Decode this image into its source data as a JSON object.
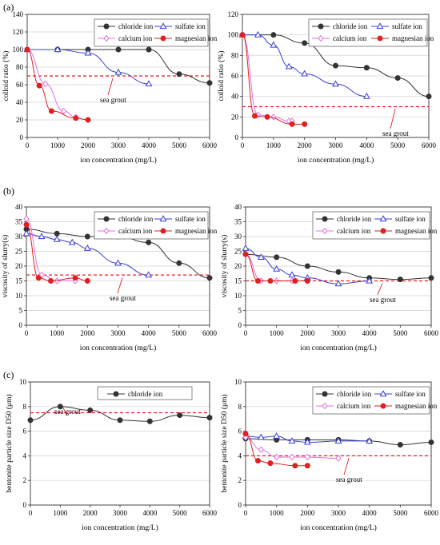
{
  "figure": {
    "panel_labels": [
      "(a)",
      "(b)",
      "(c)"
    ]
  },
  "colors": {
    "chloride": "#333333",
    "sulfate": "#3a3fd6",
    "calcium": "#e070e0",
    "magnesian": "#e02020",
    "sea_grout": "#e02020"
  },
  "chart_data": [
    {
      "id": "a-left",
      "type": "line",
      "panel": "(a)",
      "xlabel": "ion concentration (mg/L)",
      "ylabel": "colloid ratio (%)",
      "xlim": [
        0,
        6000
      ],
      "ylim": [
        0,
        140
      ],
      "xticks": [
        0,
        1000,
        2000,
        3000,
        4000,
        5000,
        6000
      ],
      "yticks": [
        0,
        20,
        40,
        60,
        80,
        100,
        120,
        140
      ],
      "legend_position": "top-right",
      "legend_columns": 2,
      "reference_line": {
        "y": 70,
        "label": "sea grout"
      },
      "series": [
        {
          "name": "chloride ion",
          "key": "chloride",
          "marker": "circle",
          "x": [
            0,
            1000,
            2000,
            3000,
            4000,
            5000,
            6000
          ],
          "y": [
            100,
            100,
            100,
            100,
            100,
            72,
            62
          ]
        },
        {
          "name": "sulfate ion",
          "key": "sulfate",
          "marker": "triangle",
          "x": [
            0,
            1000,
            2000,
            3000,
            4000
          ],
          "y": [
            100,
            100,
            96,
            74,
            61
          ]
        },
        {
          "name": "calcium ion",
          "key": "calcium",
          "marker": "diamond",
          "x": [
            0,
            600,
            1200,
            1600
          ],
          "y": [
            100,
            61,
            30,
            23
          ]
        },
        {
          "name": "magnesian ion",
          "key": "magnesian",
          "marker": "circle",
          "x": [
            0,
            400,
            800,
            1600,
            2000
          ],
          "y": [
            100,
            59,
            30,
            22,
            20
          ]
        }
      ]
    },
    {
      "id": "a-right",
      "type": "line",
      "panel": "(a)",
      "xlabel": "ion concentration (mg/L)",
      "ylabel": "colloid ratio (%)",
      "xlim": [
        0,
        6000
      ],
      "ylim": [
        0,
        120
      ],
      "xticks": [
        0,
        1000,
        2000,
        3000,
        4000,
        5000,
        6000
      ],
      "yticks": [
        0,
        20,
        40,
        60,
        80,
        100,
        120
      ],
      "legend_position": "top-right",
      "legend_columns": 2,
      "reference_line": {
        "y": 30,
        "label": "sea grout"
      },
      "series": [
        {
          "name": "chloride ion",
          "key": "chloride",
          "marker": "circle",
          "x": [
            0,
            1000,
            2000,
            3000,
            4000,
            5000,
            6000
          ],
          "y": [
            100,
            100,
            92,
            70,
            68,
            58,
            40
          ]
        },
        {
          "name": "sulfate ion",
          "key": "sulfate",
          "marker": "triangle",
          "x": [
            0,
            500,
            1000,
            1500,
            2000,
            3000,
            4000
          ],
          "y": [
            100,
            100,
            90,
            69,
            62,
            52,
            40
          ]
        },
        {
          "name": "calcium ion",
          "key": "calcium",
          "marker": "diamond",
          "x": [
            0,
            500,
            1000,
            1500,
            1600
          ],
          "y": [
            100,
            22,
            20,
            16,
            16
          ]
        },
        {
          "name": "magnesian ion",
          "key": "magnesian",
          "marker": "circle",
          "x": [
            0,
            400,
            800,
            1600,
            2000
          ],
          "y": [
            100,
            21,
            20,
            13,
            13
          ]
        }
      ]
    },
    {
      "id": "b-left",
      "type": "line",
      "panel": "(b)",
      "xlabel": "ion concentration (mg/L)",
      "ylabel": "viscosity of slurry(s)",
      "xlim": [
        0,
        6000
      ],
      "ylim": [
        0,
        40
      ],
      "xticks": [
        0,
        1000,
        2000,
        3000,
        4000,
        5000,
        6000
      ],
      "yticks": [
        0,
        5,
        10,
        15,
        20,
        25,
        30,
        35,
        40
      ],
      "legend_position": "top-right",
      "legend_columns": 2,
      "reference_line": {
        "y": 17,
        "label": "sea grout"
      },
      "series": [
        {
          "name": "chloride ion",
          "key": "chloride",
          "marker": "circle",
          "x": [
            0,
            1000,
            2000,
            3000,
            4000,
            5000,
            6000
          ],
          "y": [
            32.5,
            31,
            30,
            30,
            28,
            21,
            16
          ]
        },
        {
          "name": "sulfate ion",
          "key": "sulfate",
          "marker": "triangle",
          "x": [
            0,
            500,
            1000,
            1500,
            2000,
            3000,
            4000
          ],
          "y": [
            31,
            30,
            29,
            28,
            26,
            21,
            17
          ]
        },
        {
          "name": "calcium ion",
          "key": "calcium",
          "marker": "diamond",
          "x": [
            0,
            500,
            1000,
            1600
          ],
          "y": [
            36,
            17,
            15,
            15
          ]
        },
        {
          "name": "magnesian ion",
          "key": "magnesian",
          "marker": "circle",
          "x": [
            0,
            400,
            800,
            1600,
            2000
          ],
          "y": [
            34,
            16,
            15,
            16,
            15
          ]
        }
      ]
    },
    {
      "id": "b-right",
      "type": "line",
      "panel": "(b)",
      "xlabel": "ion concentration (mg/L)",
      "ylabel": "viscosity of slurry(s)",
      "xlim": [
        0,
        6000
      ],
      "ylim": [
        0,
        40
      ],
      "xticks": [
        0,
        1000,
        2000,
        3000,
        4000,
        5000,
        6000
      ],
      "yticks": [
        0,
        5,
        10,
        15,
        20,
        25,
        30,
        35,
        40
      ],
      "legend_position": "top-right",
      "legend_columns": 2,
      "reference_line": {
        "y": 15,
        "label": "sea grout"
      },
      "series": [
        {
          "name": "chloride ion",
          "key": "chloride",
          "marker": "circle",
          "x": [
            0,
            1000,
            2000,
            3000,
            4000,
            5000,
            6000
          ],
          "y": [
            24,
            23,
            20,
            18,
            16,
            15.5,
            16
          ]
        },
        {
          "name": "sulfate ion",
          "key": "sulfate",
          "marker": "triangle",
          "x": [
            0,
            500,
            1000,
            1500,
            2000,
            3000,
            4000
          ],
          "y": [
            26,
            23,
            19,
            17,
            16,
            14,
            15
          ]
        },
        {
          "name": "calcium ion",
          "key": "calcium",
          "marker": "diamond",
          "x": [
            0,
            500,
            1000,
            1500,
            2000
          ],
          "y": [
            24,
            15,
            15,
            15,
            15
          ]
        },
        {
          "name": "magnesian ion",
          "key": "magnesian",
          "marker": "circle",
          "x": [
            0,
            400,
            800,
            1600,
            2000
          ],
          "y": [
            24,
            15,
            15,
            15,
            15
          ]
        }
      ]
    },
    {
      "id": "c-left",
      "type": "line",
      "panel": "(c)",
      "xlabel": "ion concentration (mg/L)",
      "ylabel": "bentonite particle size D50 (μm)",
      "xlim": [
        0,
        6000
      ],
      "ylim": [
        0,
        10
      ],
      "xticks": [
        0,
        1000,
        2000,
        3000,
        4000,
        5000,
        6000
      ],
      "yticks": [
        0,
        2,
        4,
        6,
        8,
        10
      ],
      "legend_position": "top-center",
      "legend_columns": 1,
      "reference_line": {
        "y": 7.5,
        "label": "sea grout"
      },
      "series": [
        {
          "name": "chloride ion",
          "key": "chloride",
          "marker": "circle",
          "x": [
            0,
            1000,
            2000,
            3000,
            4000,
            5000,
            6000
          ],
          "y": [
            6.9,
            8.0,
            7.7,
            6.9,
            6.8,
            7.3,
            7.1
          ]
        }
      ]
    },
    {
      "id": "c-right",
      "type": "line",
      "panel": "(c)",
      "xlabel": "ion concentration (mg/L)",
      "ylabel": "bentonite particle size D50 (μm)",
      "xlim": [
        0,
        6000
      ],
      "ylim": [
        0,
        10
      ],
      "xticks": [
        0,
        1000,
        2000,
        3000,
        4000,
        5000,
        6000
      ],
      "yticks": [
        0,
        2,
        4,
        6,
        8,
        10
      ],
      "legend_position": "top-right",
      "legend_columns": 2,
      "reference_line": {
        "y": 4,
        "label": "sea grout"
      },
      "series": [
        {
          "name": "chloride ion",
          "key": "chloride",
          "marker": "circle",
          "x": [
            0,
            1000,
            2000,
            3000,
            4000,
            5000,
            6000
          ],
          "y": [
            5.4,
            5.3,
            5.3,
            5.3,
            5.2,
            4.9,
            5.1
          ]
        },
        {
          "name": "sulfate ion",
          "key": "sulfate",
          "marker": "triangle",
          "x": [
            0,
            500,
            1000,
            1500,
            2000,
            3000,
            4000
          ],
          "y": [
            5.6,
            5.5,
            5.6,
            5.2,
            5.1,
            5.2,
            5.2
          ]
        },
        {
          "name": "calcium ion",
          "key": "calcium",
          "marker": "diamond",
          "x": [
            0,
            500,
            1000,
            1500,
            2000,
            3000
          ],
          "y": [
            5.5,
            4.5,
            3.9,
            3.9,
            3.9,
            3.8
          ]
        },
        {
          "name": "magnesian ion",
          "key": "magnesian",
          "marker": "circle",
          "x": [
            0,
            400,
            800,
            1600,
            2000
          ],
          "y": [
            5.8,
            3.6,
            3.4,
            3.2,
            3.2
          ]
        }
      ]
    }
  ]
}
